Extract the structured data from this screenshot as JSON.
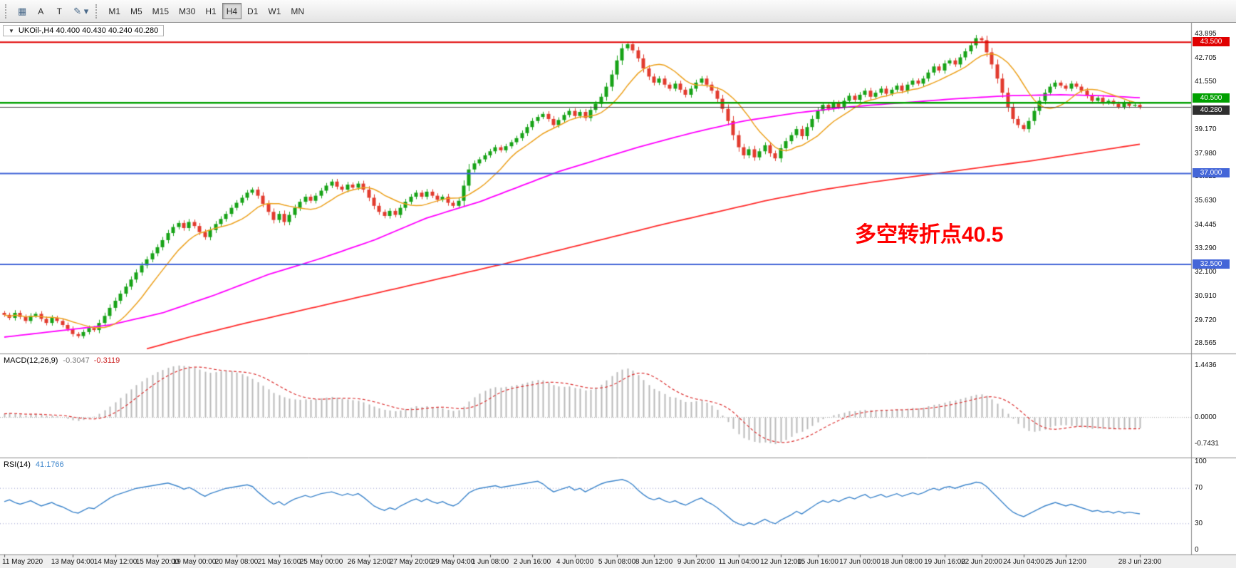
{
  "toolbar": {
    "left_buttons": [
      {
        "id": "chart-grid",
        "label": "▦"
      },
      {
        "id": "letter-a",
        "label": "A"
      },
      {
        "id": "letter-t",
        "label": "T"
      },
      {
        "id": "draw-tool",
        "label": "✎ ▾"
      }
    ],
    "timeframes": [
      "M1",
      "M5",
      "M15",
      "M30",
      "H1",
      "H4",
      "D1",
      "W1",
      "MN"
    ],
    "active_timeframe": "H4"
  },
  "symbol_bar": {
    "collapse_icon": "▼",
    "text": "UKOil-,H4  40.400 40.430 40.240 40.280"
  },
  "annotation": {
    "text": "多空转折点40.5",
    "color": "#ff0000"
  },
  "price_axis": {
    "ticks": [
      "43.895",
      "42.705",
      "41.550",
      "39.170",
      "37.980",
      "36.825",
      "35.630",
      "34.445",
      "33.290",
      "32.100",
      "30.910",
      "29.720",
      "28.565"
    ]
  },
  "levels": [
    {
      "price": 43.5,
      "label": "43.500",
      "color": "#e00000",
      "line_width": 2
    },
    {
      "price": 40.5,
      "label": "40.500",
      "color": "#00a000",
      "line_width": 2.5
    },
    {
      "price": 37.0,
      "label": "37.000",
      "color": "#4466d8",
      "line_width": 2
    },
    {
      "price": 32.5,
      "label": "32.500",
      "color": "#4466d8",
      "line_width": 2
    }
  ],
  "current_price": {
    "price": 40.28,
    "label": "40.280",
    "badge_color": "#2e2e2e",
    "line_color": "#3f3f3f"
  },
  "macd_panel": {
    "title": "MACD(12,26,9)",
    "main_value": "-0.3047",
    "signal_value": "-0.3119",
    "ticks": [
      "1.4436",
      "0.0000",
      "-0.7431"
    ],
    "tick_values": [
      1.4436,
      0,
      -0.7431
    ]
  },
  "rsi_panel": {
    "title": "RSI(14)",
    "value": "41.1766",
    "ticks": [
      "100",
      "70",
      "30",
      "0"
    ],
    "tick_values": [
      100,
      70,
      30,
      0
    ],
    "levels": [
      70,
      30
    ]
  },
  "time_axis": {
    "labels": [
      "11 May 2020",
      "13 May 04:00",
      "14 May 12:00",
      "15 May 20:00",
      "19 May 00:00",
      "20 May 08:00",
      "21 May 16:00",
      "25 May 00:00",
      "26 May 12:00",
      "27 May 20:00",
      "29 May 04:00",
      "1 Jun 08:00",
      "2 Jun 16:00",
      "4 Jun 00:00",
      "5 Jun 08:00",
      "8 Jun 12:00",
      "9 Jun 20:00",
      "11 Jun 04:00",
      "12 Jun 12:00",
      "15 Jun 16:00",
      "17 Jun 00:00",
      "18 Jun 08:00",
      "19 Jun 16:00",
      "22 Jun 20:00",
      "24 Jun 04:00",
      "25 Jun 12:00",
      "28 J un 23:00"
    ],
    "bars": [
      0,
      13,
      21,
      29,
      36,
      44,
      52,
      60,
      69,
      77,
      85,
      92,
      100,
      108,
      116,
      123,
      131,
      139,
      147,
      154,
      162,
      170,
      178,
      185,
      193,
      201,
      215
    ]
  },
  "chart_data": {
    "type": "candlestick",
    "symbol": "UKOil-",
    "timeframe": "H4",
    "ohlc_current": {
      "open": 40.4,
      "high": 40.43,
      "low": 40.24,
      "close": 40.28
    },
    "price_range": {
      "min": 28.3,
      "max": 44.25
    },
    "closes": [
      30.0,
      29.85,
      30.1,
      29.9,
      29.7,
      29.95,
      30.05,
      29.8,
      29.6,
      29.85,
      29.7,
      29.5,
      29.3,
      29.05,
      28.95,
      29.15,
      29.35,
      29.25,
      29.6,
      29.95,
      30.35,
      30.7,
      31.05,
      31.4,
      31.75,
      32.1,
      32.45,
      32.75,
      33.05,
      33.35,
      33.7,
      34.05,
      34.35,
      34.55,
      34.3,
      34.6,
      34.4,
      34.1,
      33.85,
      34.2,
      34.5,
      34.75,
      35.0,
      35.3,
      35.55,
      35.8,
      36.05,
      36.2,
      35.9,
      35.5,
      35.1,
      34.7,
      35.0,
      34.6,
      34.95,
      35.3,
      35.6,
      35.85,
      35.65,
      35.9,
      36.15,
      36.4,
      36.6,
      36.35,
      36.2,
      36.45,
      36.3,
      36.5,
      36.2,
      35.8,
      35.4,
      35.1,
      34.9,
      35.15,
      34.95,
      35.3,
      35.6,
      35.85,
      36.05,
      35.85,
      36.1,
      35.9,
      35.7,
      35.85,
      35.55,
      35.4,
      35.65,
      36.4,
      37.2,
      37.5,
      37.7,
      37.9,
      38.1,
      38.3,
      38.15,
      38.35,
      38.55,
      38.75,
      39.0,
      39.3,
      39.6,
      39.8,
      39.95,
      39.7,
      39.4,
      39.65,
      39.9,
      40.1,
      39.85,
      40.05,
      39.75,
      40.15,
      40.45,
      40.8,
      41.3,
      41.9,
      42.6,
      43.2,
      43.4,
      43.1,
      42.7,
      42.2,
      41.8,
      41.5,
      41.7,
      41.4,
      41.2,
      41.45,
      41.15,
      40.9,
      41.2,
      41.5,
      41.7,
      41.4,
      41.1,
      40.7,
      40.2,
      39.6,
      38.9,
      38.3,
      37.9,
      38.2,
      37.8,
      38.1,
      38.4,
      38.0,
      37.75,
      38.25,
      38.6,
      38.9,
      39.2,
      38.85,
      39.3,
      39.7,
      40.1,
      40.4,
      40.2,
      40.5,
      40.3,
      40.6,
      40.85,
      40.65,
      40.9,
      41.1,
      40.8,
      41.0,
      41.2,
      40.95,
      41.15,
      41.35,
      41.1,
      41.4,
      41.6,
      41.45,
      41.7,
      42.0,
      42.3,
      42.1,
      42.45,
      42.6,
      42.4,
      42.75,
      43.05,
      43.35,
      43.7,
      43.6,
      43.0,
      42.4,
      41.7,
      41.0,
      40.3,
      39.7,
      39.4,
      39.2,
      39.6,
      40.1,
      40.6,
      41.0,
      41.3,
      41.5,
      41.35,
      41.2,
      41.45,
      41.3,
      41.1,
      40.85,
      40.6,
      40.75,
      40.5,
      40.6,
      40.45,
      40.3,
      40.5,
      40.35,
      40.4,
      40.28
    ],
    "ma_orange_period": 10,
    "ma_magenta": [
      [
        0,
        28.9
      ],
      [
        10,
        29.2
      ],
      [
        20,
        29.5
      ],
      [
        30,
        30.1
      ],
      [
        40,
        31.0
      ],
      [
        50,
        32.0
      ],
      [
        60,
        32.8
      ],
      [
        70,
        33.7
      ],
      [
        80,
        34.8
      ],
      [
        90,
        35.6
      ],
      [
        100,
        36.6
      ],
      [
        105,
        37.1
      ],
      [
        110,
        37.5
      ],
      [
        120,
        38.3
      ],
      [
        130,
        39.0
      ],
      [
        140,
        39.6
      ],
      [
        150,
        40.0
      ],
      [
        160,
        40.3
      ],
      [
        170,
        40.5
      ],
      [
        180,
        40.7
      ],
      [
        190,
        40.85
      ],
      [
        200,
        40.9
      ],
      [
        208,
        40.85
      ],
      [
        215,
        40.75
      ]
    ],
    "ma_red": [
      [
        27,
        28.32
      ],
      [
        35,
        28.9
      ],
      [
        45,
        29.55
      ],
      [
        55,
        30.15
      ],
      [
        65,
        30.75
      ],
      [
        75,
        31.35
      ],
      [
        85,
        31.95
      ],
      [
        95,
        32.55
      ],
      [
        105,
        33.2
      ],
      [
        115,
        33.85
      ],
      [
        125,
        34.5
      ],
      [
        135,
        35.1
      ],
      [
        145,
        35.7
      ],
      [
        155,
        36.2
      ],
      [
        165,
        36.6
      ],
      [
        175,
        36.95
      ],
      [
        185,
        37.3
      ],
      [
        195,
        37.65
      ],
      [
        205,
        38.05
      ],
      [
        215,
        38.45
      ]
    ],
    "macd": [
      0.1,
      0.12,
      0.1,
      0.08,
      0.05,
      0.08,
      0.1,
      0.07,
      0.04,
      0.05,
      0.03,
      0.0,
      -0.04,
      -0.08,
      -0.1,
      -0.07,
      -0.03,
      0.02,
      0.1,
      0.2,
      0.3,
      0.42,
      0.54,
      0.66,
      0.78,
      0.9,
      1.0,
      1.1,
      1.18,
      1.26,
      1.32,
      1.38,
      1.42,
      1.4436,
      1.43,
      1.42,
      1.38,
      1.33,
      1.27,
      1.24,
      1.26,
      1.29,
      1.31,
      1.29,
      1.25,
      1.2,
      1.14,
      1.07,
      0.98,
      0.88,
      0.78,
      0.68,
      0.62,
      0.56,
      0.52,
      0.5,
      0.49,
      0.5,
      0.49,
      0.51,
      0.53,
      0.55,
      0.57,
      0.55,
      0.52,
      0.5,
      0.48,
      0.46,
      0.42,
      0.36,
      0.3,
      0.25,
      0.21,
      0.19,
      0.17,
      0.19,
      0.23,
      0.27,
      0.31,
      0.29,
      0.31,
      0.29,
      0.27,
      0.25,
      0.21,
      0.18,
      0.2,
      0.3,
      0.44,
      0.56,
      0.66,
      0.74,
      0.8,
      0.84,
      0.83,
      0.85,
      0.87,
      0.9,
      0.93,
      0.97,
      1.01,
      1.04,
      1.03,
      0.97,
      0.9,
      0.86,
      0.85,
      0.86,
      0.82,
      0.8,
      0.75,
      0.77,
      0.83,
      0.91,
      1.03,
      1.15,
      1.26,
      1.33,
      1.36,
      1.3,
      1.18,
      1.04,
      0.9,
      0.79,
      0.73,
      0.65,
      0.57,
      0.55,
      0.49,
      0.43,
      0.43,
      0.45,
      0.47,
      0.41,
      0.33,
      0.21,
      0.05,
      -0.13,
      -0.32,
      -0.47,
      -0.58,
      -0.63,
      -0.68,
      -0.71,
      -0.7,
      -0.72,
      -0.7431,
      -0.7,
      -0.63,
      -0.54,
      -0.44,
      -0.4,
      -0.33,
      -0.24,
      -0.14,
      -0.05,
      0.01,
      0.06,
      0.09,
      0.13,
      0.17,
      0.17,
      0.19,
      0.21,
      0.2,
      0.2,
      0.21,
      0.2,
      0.21,
      0.23,
      0.22,
      0.24,
      0.26,
      0.25,
      0.27,
      0.31,
      0.35,
      0.37,
      0.41,
      0.45,
      0.47,
      0.51,
      0.55,
      0.59,
      0.63,
      0.64,
      0.6,
      0.5,
      0.38,
      0.24,
      0.1,
      -0.04,
      -0.18,
      -0.3,
      -0.38,
      -0.4,
      -0.38,
      -0.34,
      -0.28,
      -0.24,
      -0.22,
      -0.22,
      -0.24,
      -0.26,
      -0.28,
      -0.3,
      -0.32,
      -0.31,
      -0.32,
      -0.33,
      -0.33,
      -0.32,
      -0.31,
      -0.31,
      -0.3,
      -0.3047
    ],
    "rsi": [
      55,
      57,
      54,
      52,
      54,
      56,
      53,
      50,
      52,
      54,
      51,
      49,
      46,
      43,
      42,
      45,
      48,
      47,
      51,
      55,
      59,
      62,
      64,
      66,
      68,
      70,
      71,
      72,
      73,
      74,
      75,
      76,
      74,
      72,
      69,
      71,
      68,
      64,
      61,
      64,
      66,
      68,
      70,
      71,
      72,
      73,
      74,
      72,
      66,
      61,
      56,
      52,
      55,
      51,
      55,
      58,
      60,
      62,
      60,
      62,
      64,
      65,
      66,
      64,
      62,
      64,
      62,
      64,
      60,
      55,
      50,
      47,
      45,
      48,
      46,
      50,
      53,
      56,
      58,
      55,
      58,
      55,
      53,
      55,
      52,
      50,
      53,
      59,
      65,
      68,
      70,
      71,
      72,
      73,
      71,
      72,
      73,
      74,
      75,
      76,
      77,
      78,
      75,
      70,
      66,
      68,
      70,
      72,
      68,
      70,
      66,
      69,
      72,
      75,
      77,
      78,
      79,
      80,
      78,
      74,
      68,
      63,
      59,
      57,
      59,
      56,
      54,
      56,
      53,
      51,
      54,
      57,
      59,
      55,
      52,
      48,
      43,
      38,
      33,
      30,
      28,
      31,
      29,
      32,
      35,
      32,
      30,
      34,
      37,
      40,
      44,
      41,
      45,
      49,
      53,
      56,
      54,
      57,
      55,
      58,
      60,
      58,
      61,
      63,
      59,
      61,
      63,
      60,
      62,
      64,
      61,
      63,
      65,
      63,
      65,
      68,
      70,
      68,
      71,
      72,
      70,
      72,
      74,
      75,
      77,
      76,
      72,
      66,
      60,
      54,
      48,
      43,
      40,
      38,
      41,
      44,
      47,
      50,
      52,
      54,
      52,
      50,
      52,
      50,
      48,
      46,
      44,
      45,
      43,
      44,
      42,
      44,
      42,
      43,
      42,
      41.18
    ]
  }
}
